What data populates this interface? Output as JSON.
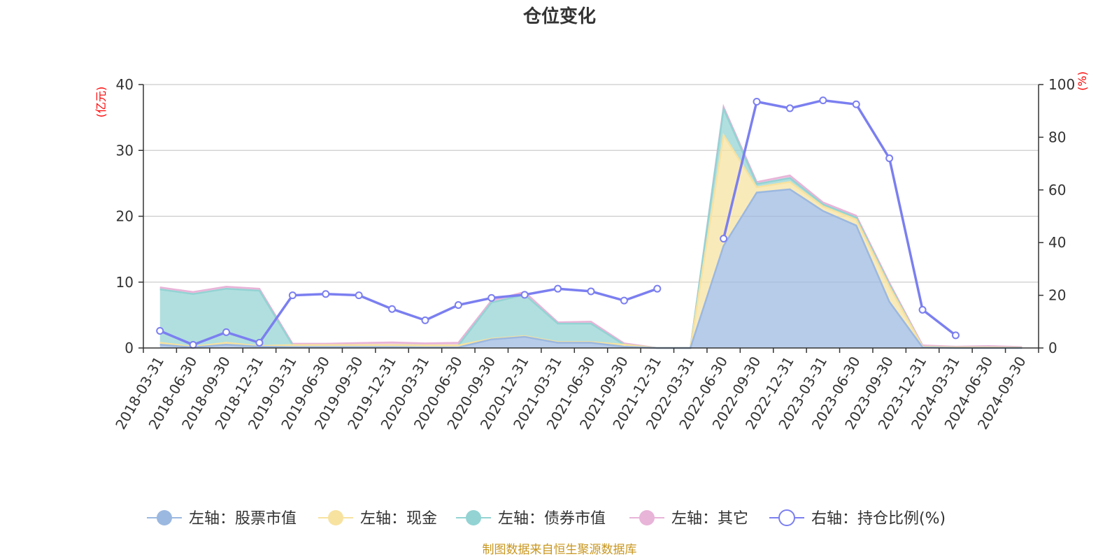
{
  "chart_data": {
    "type": "area",
    "title": "仓位变化",
    "x": [
      "2018-03-31",
      "2018-06-30",
      "2018-09-30",
      "2018-12-31",
      "2019-03-31",
      "2019-06-30",
      "2019-09-30",
      "2019-12-31",
      "2020-03-31",
      "2020-06-30",
      "2020-09-30",
      "2020-12-31",
      "2021-03-31",
      "2021-06-30",
      "2021-09-30",
      "2021-12-31",
      "2022-03-31",
      "2022-06-30",
      "2022-09-30",
      "2022-12-31",
      "2023-03-31",
      "2023-06-30",
      "2023-09-30",
      "2023-12-31",
      "2024-03-31",
      "2024-06-30",
      "2024-09-30"
    ],
    "y_left_unit": "(亿元)",
    "y_right_unit": "(%)",
    "ylim_left": [
      0,
      40
    ],
    "ylim_right": [
      0,
      100
    ],
    "yticks_left": [
      0,
      10,
      20,
      30,
      40
    ],
    "yticks_right": [
      0,
      20,
      40,
      60,
      80,
      100
    ],
    "grid": true,
    "legend_position": "bottom",
    "series": [
      {
        "name": "左轴：股票市值",
        "axis": "left",
        "stack": "left",
        "color": "#9bb8e0",
        "values": [
          0.5,
          0.1,
          0.5,
          0.2,
          0.15,
          0.15,
          0.15,
          0.15,
          0.1,
          0.1,
          1.3,
          1.7,
          0.8,
          0.8,
          0.2,
          0.0,
          0.0,
          15.5,
          23.6,
          24.1,
          20.8,
          18.6,
          7.0,
          0.1,
          0.0,
          0.0,
          0.0
        ]
      },
      {
        "name": "左轴：现金",
        "axis": "left",
        "stack": "left",
        "color": "#f7e2a0",
        "values": [
          0.3,
          0.1,
          0.3,
          0.1,
          0.3,
          0.3,
          0.3,
          0.3,
          0.3,
          0.3,
          0.1,
          0.1,
          0.1,
          0.1,
          0.3,
          0.0,
          0.0,
          16.8,
          0.8,
          1.1,
          0.7,
          0.9,
          2.3,
          0.1,
          0.1,
          0.1,
          0.05
        ]
      },
      {
        "name": "左轴：债券市值",
        "axis": "left",
        "stack": "left",
        "color": "#93d3d3",
        "values": [
          8.1,
          8.0,
          8.2,
          8.4,
          0.0,
          0.0,
          0.0,
          0.0,
          0.0,
          0.0,
          5.5,
          6.3,
          2.8,
          2.8,
          0.0,
          0.0,
          0.0,
          4.0,
          0.5,
          0.6,
          0.3,
          0.3,
          0.3,
          0.0,
          0.0,
          0.0,
          0.0
        ]
      },
      {
        "name": "左轴：其它",
        "axis": "left",
        "stack": "left",
        "color": "#e8b4d8",
        "values": [
          0.3,
          0.3,
          0.3,
          0.3,
          0.2,
          0.2,
          0.3,
          0.4,
          0.3,
          0.4,
          0.3,
          0.4,
          0.2,
          0.3,
          0.2,
          0.0,
          0.0,
          0.3,
          0.3,
          0.4,
          0.3,
          0.3,
          0.3,
          0.2,
          0.1,
          0.2,
          0.1
        ]
      },
      {
        "name": "右轴：持仓比例(%)",
        "axis": "right",
        "color": "#7b7ff0",
        "values": [
          6.5,
          1.2,
          6.0,
          2.0,
          20.0,
          20.5,
          20.0,
          14.8,
          10.5,
          16.3,
          19.0,
          20.2,
          22.5,
          21.5,
          18.0,
          22.5,
          null,
          41.5,
          93.5,
          91.0,
          94.0,
          92.5,
          72.0,
          14.5,
          4.8,
          null,
          null
        ]
      }
    ],
    "source_note": "制图数据来自恒生聚源数据库"
  }
}
